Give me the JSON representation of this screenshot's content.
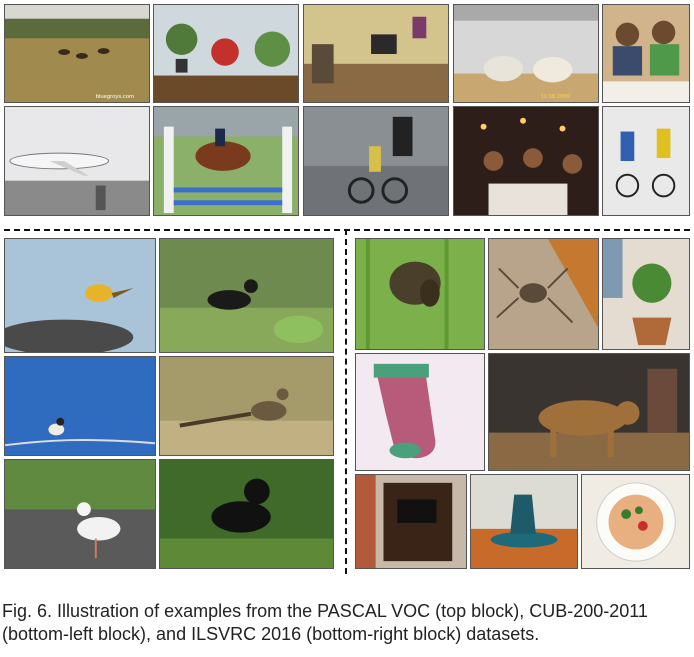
{
  "figure": {
    "caption": "Fig. 6.  Illustration of examples from the PASCAL VOC (top block), CUB-200-2011 (bottom-left block), and ILSVRC 2016 (bottom-right block) datasets.",
    "watermark_text": "bluegroys.com",
    "photo_stamp": "11.08.2009"
  },
  "colors": {
    "sky": "#8ec0e8",
    "grass": "#6d8b3a",
    "dirt": "#a88a5c",
    "indoor": "#c9b48a",
    "dark": "#2a2420",
    "accent_red": "#c4302b"
  }
}
